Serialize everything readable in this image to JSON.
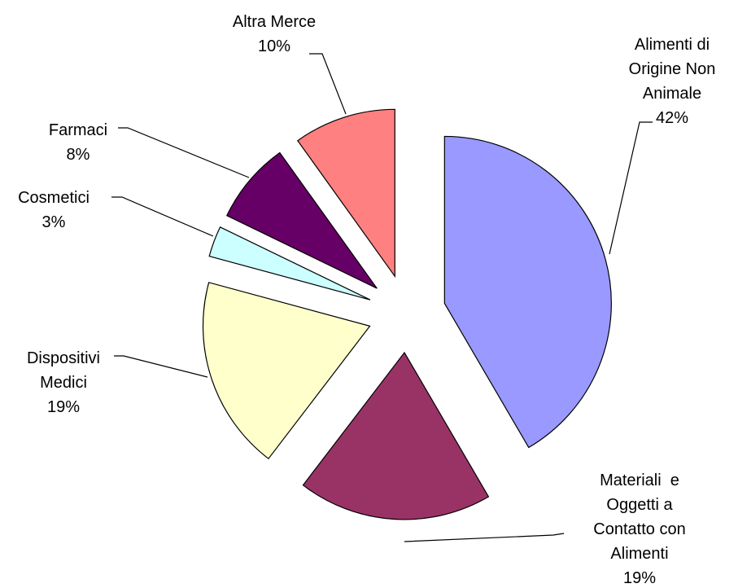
{
  "chart_data": {
    "type": "pie",
    "categories": [
      "Alimenti di Origine Non Animale",
      "Materiali  e Oggetti a Contatto con Alimenti",
      "Dispositivi Medici",
      "Cosmetici",
      "Farmaci",
      "Altra Merce"
    ],
    "values": [
      42,
      19,
      19,
      3,
      8,
      10
    ],
    "value_labels": [
      "42%",
      "19%",
      "19%",
      "3%",
      "8%",
      "10%"
    ],
    "colors": [
      "#9999ff",
      "#993366",
      "#ffffcc",
      "#ccffff",
      "#660066",
      "#ff8080"
    ]
  }
}
